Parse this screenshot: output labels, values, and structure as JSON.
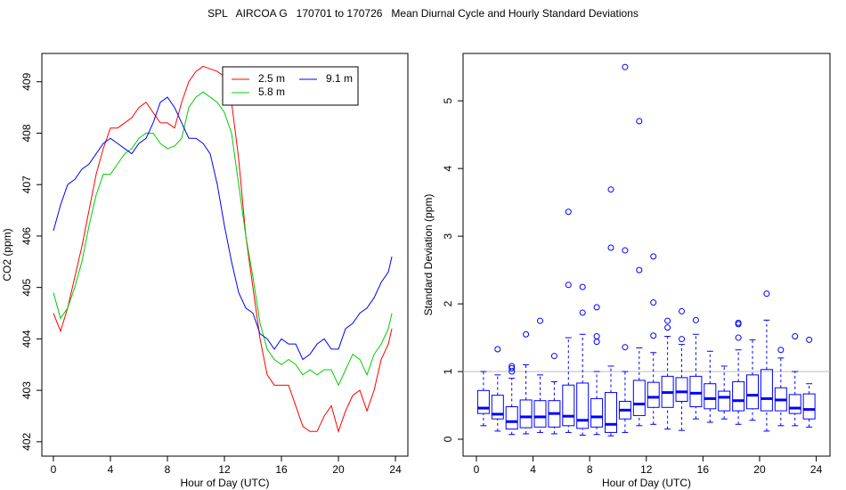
{
  "title": "SPL   AIRCOA G   170701 to 170726   Mean Diurnal Cycle and Hourly Standard Deviations",
  "chart_data": [
    {
      "type": "line",
      "xlabel": "Hour of Day (UTC)",
      "ylabel": "CO2 (ppm)",
      "xlim": [
        -0.81,
        24.87
      ],
      "ylim": [
        401.72,
        409.55
      ],
      "xticks": [
        0,
        4,
        8,
        12,
        16,
        20,
        24
      ],
      "yticks": [
        402,
        403,
        404,
        405,
        406,
        407,
        408,
        409
      ],
      "legend": "top",
      "legend_columns": 2,
      "x": [
        0,
        0.5,
        1,
        1.5,
        2,
        2.5,
        3,
        3.5,
        4,
        4.5,
        5,
        5.5,
        6,
        6.5,
        7,
        7.5,
        8,
        8.5,
        9,
        9.5,
        10,
        10.5,
        11,
        11.5,
        12,
        12.5,
        13,
        13.5,
        14,
        14.5,
        15,
        15.5,
        16,
        16.5,
        17,
        17.5,
        18,
        18.5,
        19,
        19.5,
        20,
        20.5,
        21,
        21.5,
        22,
        22.5,
        23,
        23.5,
        23.75
      ],
      "series": [
        {
          "name": "2.5 m",
          "color": "#ff0000",
          "values": [
            404.5,
            404.15,
            404.6,
            405.2,
            405.8,
            406.5,
            407.2,
            407.7,
            408.1,
            408.1,
            408.2,
            408.3,
            408.5,
            408.6,
            408.4,
            408.2,
            408.2,
            408.1,
            408.6,
            409.0,
            409.2,
            409.3,
            409.25,
            409.2,
            409.1,
            408.6,
            407.5,
            406.0,
            405.0,
            404.0,
            403.3,
            403.1,
            403.1,
            403.1,
            402.7,
            402.3,
            402.2,
            402.2,
            402.5,
            402.7,
            402.2,
            402.6,
            402.9,
            403.0,
            402.6,
            403.0,
            403.6,
            403.9,
            404.2
          ]
        },
        {
          "name": "5.8 m",
          "color": "#00cd00",
          "values": [
            404.9,
            404.4,
            404.6,
            405.0,
            405.5,
            406.2,
            406.8,
            407.2,
            407.2,
            407.4,
            407.6,
            407.7,
            407.9,
            408.0,
            408.0,
            407.8,
            407.7,
            407.75,
            407.9,
            408.5,
            408.7,
            408.8,
            408.7,
            408.6,
            408.4,
            408.0,
            407.0,
            406.0,
            405.2,
            404.3,
            403.8,
            403.6,
            403.5,
            403.6,
            403.5,
            403.3,
            403.4,
            403.3,
            403.4,
            403.4,
            403.1,
            403.4,
            403.7,
            403.6,
            403.3,
            403.7,
            403.9,
            404.2,
            404.5
          ]
        },
        {
          "name": "9.1 m",
          "color": "#0000ff",
          "values": [
            406.1,
            406.6,
            407.0,
            407.1,
            407.3,
            407.4,
            407.6,
            407.8,
            407.9,
            407.8,
            407.7,
            407.6,
            407.8,
            407.9,
            408.2,
            408.6,
            408.7,
            408.5,
            408.2,
            407.9,
            407.9,
            407.8,
            407.6,
            407.0,
            406.2,
            405.5,
            404.9,
            404.6,
            404.5,
            404.1,
            404.0,
            403.8,
            404.0,
            403.9,
            403.9,
            403.6,
            403.7,
            403.9,
            404.0,
            403.8,
            403.8,
            404.2,
            404.3,
            404.5,
            404.6,
            404.8,
            405.1,
            405.3,
            405.6
          ]
        }
      ]
    },
    {
      "type": "box",
      "xlabel": "Hour of Day (UTC)",
      "ylabel": "Standard Deviation (ppm)",
      "xlim": [
        -0.94,
        24.97
      ],
      "ylim": [
        -0.25,
        5.7
      ],
      "xticks": [
        0,
        4,
        8,
        12,
        16,
        20,
        24
      ],
      "yticks": [
        0,
        1,
        2,
        3,
        4,
        5
      ],
      "hline": 1,
      "color": "#0000ff",
      "boxes": [
        {
          "x": 0.5,
          "low": 0.2,
          "q1": 0.38,
          "median": 0.46,
          "q3": 0.72,
          "high": 1.0,
          "outliers": []
        },
        {
          "x": 1.5,
          "low": 0.12,
          "q1": 0.3,
          "median": 0.37,
          "q3": 0.65,
          "high": 0.95,
          "outliers": [
            1.33
          ]
        },
        {
          "x": 2.5,
          "low": 0.07,
          "q1": 0.15,
          "median": 0.26,
          "q3": 0.48,
          "high": 0.9,
          "outliers": [
            1.0,
            1.05,
            1.08
          ]
        },
        {
          "x": 3.5,
          "low": 0.08,
          "q1": 0.17,
          "median": 0.33,
          "q3": 0.58,
          "high": 1.1,
          "outliers": [
            1.55
          ]
        },
        {
          "x": 4.5,
          "low": 0.1,
          "q1": 0.18,
          "median": 0.33,
          "q3": 0.57,
          "high": 0.95,
          "outliers": [
            1.75
          ]
        },
        {
          "x": 5.5,
          "low": 0.08,
          "q1": 0.18,
          "median": 0.38,
          "q3": 0.57,
          "high": 0.85,
          "outliers": [
            1.23
          ]
        },
        {
          "x": 6.5,
          "low": 0.1,
          "q1": 0.2,
          "median": 0.34,
          "q3": 0.8,
          "high": 1.5,
          "outliers": [
            2.28,
            3.36
          ]
        },
        {
          "x": 7.5,
          "low": 0.06,
          "q1": 0.16,
          "median": 0.28,
          "q3": 0.83,
          "high": 1.55,
          "outliers": [
            1.87,
            2.25
          ]
        },
        {
          "x": 8.5,
          "low": 0.07,
          "q1": 0.18,
          "median": 0.33,
          "q3": 0.6,
          "high": 1.0,
          "outliers": [
            1.44,
            1.52,
            1.95
          ]
        },
        {
          "x": 9.5,
          "low": 0.05,
          "q1": 0.1,
          "median": 0.22,
          "q3": 0.69,
          "high": 1.08,
          "outliers": [
            2.83,
            3.69
          ]
        },
        {
          "x": 10.5,
          "low": 0.1,
          "q1": 0.3,
          "median": 0.43,
          "q3": 0.56,
          "high": 1.0,
          "outliers": [
            1.36,
            2.79,
            5.5
          ]
        },
        {
          "x": 11.5,
          "low": 0.2,
          "q1": 0.35,
          "median": 0.52,
          "q3": 0.87,
          "high": 1.35,
          "outliers": [
            2.5,
            4.7
          ]
        },
        {
          "x": 12.5,
          "low": 0.22,
          "q1": 0.47,
          "median": 0.62,
          "q3": 0.84,
          "high": 1.28,
          "outliers": [
            1.53,
            2.02,
            2.7
          ]
        },
        {
          "x": 13.5,
          "low": 0.15,
          "q1": 0.47,
          "median": 0.69,
          "q3": 0.93,
          "high": 1.52,
          "outliers": [
            1.65,
            1.75
          ]
        },
        {
          "x": 14.5,
          "low": 0.13,
          "q1": 0.56,
          "median": 0.7,
          "q3": 0.91,
          "high": 1.4,
          "outliers": [
            1.48,
            1.89
          ]
        },
        {
          "x": 15.5,
          "low": 0.3,
          "q1": 0.48,
          "median": 0.68,
          "q3": 0.93,
          "high": 1.55,
          "outliers": [
            1.76
          ]
        },
        {
          "x": 16.5,
          "low": 0.25,
          "q1": 0.45,
          "median": 0.6,
          "q3": 0.82,
          "high": 1.3,
          "outliers": []
        },
        {
          "x": 17.5,
          "low": 0.3,
          "q1": 0.42,
          "median": 0.62,
          "q3": 0.71,
          "high": 1.08,
          "outliers": []
        },
        {
          "x": 18.5,
          "low": 0.22,
          "q1": 0.42,
          "median": 0.57,
          "q3": 0.85,
          "high": 1.32,
          "outliers": [
            1.5,
            1.7,
            1.72
          ]
        },
        {
          "x": 19.5,
          "low": 0.28,
          "q1": 0.45,
          "median": 0.65,
          "q3": 0.95,
          "high": 1.47,
          "outliers": []
        },
        {
          "x": 20.5,
          "low": 0.12,
          "q1": 0.42,
          "median": 0.6,
          "q3": 1.03,
          "high": 1.76,
          "outliers": [
            2.15
          ]
        },
        {
          "x": 21.5,
          "low": 0.2,
          "q1": 0.42,
          "median": 0.58,
          "q3": 0.76,
          "high": 1.2,
          "outliers": [
            1.32
          ]
        },
        {
          "x": 22.5,
          "low": 0.2,
          "q1": 0.38,
          "median": 0.46,
          "q3": 0.66,
          "high": 1.0,
          "outliers": [
            1.52
          ]
        },
        {
          "x": 23.5,
          "low": 0.18,
          "q1": 0.3,
          "median": 0.44,
          "q3": 0.67,
          "high": 0.82,
          "outliers": [
            1.47
          ]
        }
      ]
    }
  ]
}
